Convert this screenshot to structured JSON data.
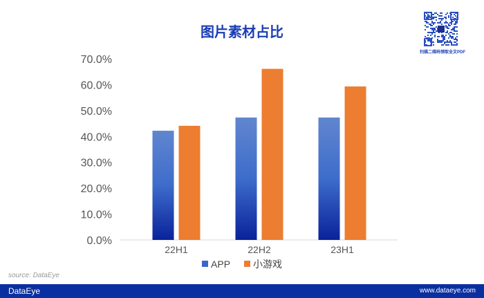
{
  "chart_data": {
    "type": "bar",
    "title": "图片素材占比",
    "categories": [
      "22H1",
      "22H2",
      "23H1"
    ],
    "series": [
      {
        "name": "APP",
        "values": [
          42.2,
          47.3,
          47.3
        ],
        "color": "#3a66c8"
      },
      {
        "name": "小游戏",
        "values": [
          44.1,
          66.1,
          59.3
        ],
        "color": "#ed7d31"
      }
    ],
    "ylim": [
      0,
      70
    ],
    "yticks": [
      "0.0%",
      "10.0%",
      "20.0%",
      "30.0%",
      "40.0%",
      "50.0%",
      "60.0%",
      "70.0%"
    ],
    "grid": false,
    "legend": "bottom"
  },
  "watermark": "DataEye",
  "qr_caption": "扫描二维码领取全文PDF",
  "source": "source: DataEye",
  "footer": {
    "logo": "DataEye",
    "url": "www.dataeye.com",
    "color": "#0a2fa0"
  }
}
